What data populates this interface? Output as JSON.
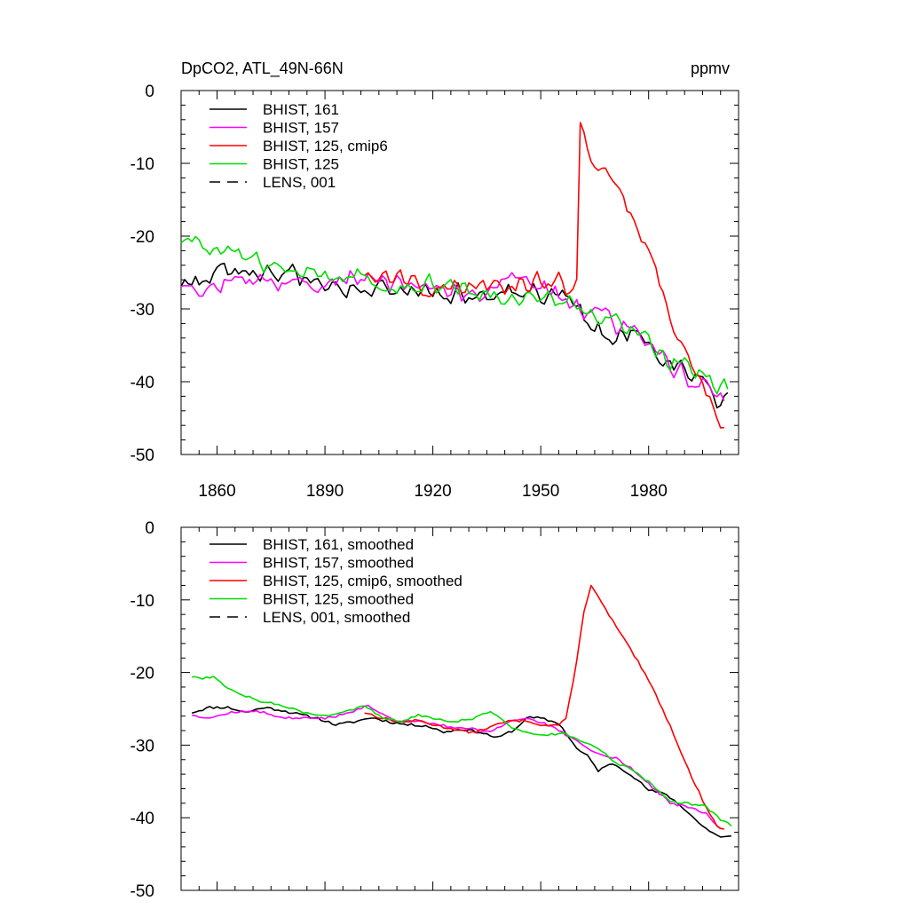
{
  "header": {
    "title": "DpCO2, ATL_49N-66N",
    "units": "ppmv"
  },
  "chart_data": [
    {
      "type": "line",
      "xlim": [
        1850,
        2005
      ],
      "ylim": [
        -50,
        0
      ],
      "xticks": [
        1860,
        1890,
        1920,
        1950,
        1980
      ],
      "yticks": [
        0,
        -10,
        -20,
        -30,
        -40,
        -50
      ],
      "show_x_tick_labels": true,
      "legend_position": "top-left",
      "grid": false,
      "series": [
        {
          "name": "BHIST, 161",
          "color": "#000000",
          "dash": "solid",
          "style": "noisy",
          "seed": 161,
          "points": [
            [
              1850,
              -26.5
            ],
            [
              1865,
              -25
            ],
            [
              1880,
              -25.5
            ],
            [
              1900,
              -27
            ],
            [
              1920,
              -27.5
            ],
            [
              1935,
              -28.5
            ],
            [
              1945,
              -27.5
            ],
            [
              1955,
              -28
            ],
            [
              1960,
              -30
            ],
            [
              1965,
              -33.5
            ],
            [
              1975,
              -33
            ],
            [
              1985,
              -37
            ],
            [
              1995,
              -40
            ],
            [
              2000,
              -43
            ],
            [
              2002,
              -42
            ]
          ]
        },
        {
          "name": "BHIST, 157",
          "color": "#ff00ff",
          "dash": "solid",
          "style": "noisy",
          "seed": 157,
          "points": [
            [
              1850,
              -26.5
            ],
            [
              1865,
              -26.5
            ],
            [
              1880,
              -25.8
            ],
            [
              1890,
              -26.5
            ],
            [
              1900,
              -25
            ],
            [
              1915,
              -27
            ],
            [
              1930,
              -28.5
            ],
            [
              1940,
              -26
            ],
            [
              1950,
              -27
            ],
            [
              1960,
              -29.5
            ],
            [
              1970,
              -32
            ],
            [
              1980,
              -35
            ],
            [
              1990,
              -39
            ],
            [
              1998,
              -41
            ],
            [
              2001,
              -42
            ]
          ]
        },
        {
          "name": "BHIST, 125, cmip6",
          "color": "#ff0000",
          "dash": "solid",
          "style": "noisy",
          "seed": 126,
          "points": [
            [
              1901,
              -25
            ],
            [
              1915,
              -26.5
            ],
            [
              1925,
              -27.5
            ],
            [
              1935,
              -27
            ],
            [
              1945,
              -26
            ],
            [
              1955,
              -26.5
            ],
            [
              1959,
              -27.5
            ],
            [
              1960,
              -26.5
            ],
            [
              1961,
              -5.2
            ],
            [
              1962,
              -5.5
            ],
            [
              1965,
              -9.5
            ],
            [
              1970,
              -13
            ],
            [
              1975,
              -17
            ],
            [
              1980,
              -22
            ],
            [
              1985,
              -29
            ],
            [
              1990,
              -36
            ],
            [
              1995,
              -41
            ],
            [
              1999,
              -44
            ],
            [
              2001,
              -46.5
            ]
          ]
        },
        {
          "name": "BHIST, 125",
          "color": "#00dd00",
          "dash": "solid",
          "style": "noisy",
          "seed": 125,
          "points": [
            [
              1850,
              -20.5
            ],
            [
              1855,
              -20
            ],
            [
              1860,
              -22
            ],
            [
              1870,
              -23.5
            ],
            [
              1880,
              -25
            ],
            [
              1890,
              -26
            ],
            [
              1900,
              -25
            ],
            [
              1915,
              -27
            ],
            [
              1925,
              -26.5
            ],
            [
              1935,
              -27.5
            ],
            [
              1945,
              -28
            ],
            [
              1955,
              -28.5
            ],
            [
              1965,
              -31
            ],
            [
              1975,
              -33
            ],
            [
              1985,
              -37
            ],
            [
              1995,
              -39
            ],
            [
              2002,
              -41.5
            ]
          ]
        }
      ]
    },
    {
      "type": "line",
      "xlim": [
        1850,
        2005
      ],
      "ylim": [
        -50,
        0
      ],
      "xticks": [
        1860,
        1890,
        1920,
        1950,
        1980
      ],
      "yticks": [
        0,
        -10,
        -20,
        -30,
        -40,
        -50
      ],
      "show_x_tick_labels": false,
      "legend_position": "top-left",
      "grid": false,
      "series": [
        {
          "name": "BHIST, 161, smoothed",
          "color": "#000000",
          "dash": "solid",
          "style": "smooth",
          "seed": 11,
          "points": [
            [
              1853,
              -25.5
            ],
            [
              1858,
              -24.8
            ],
            [
              1863,
              -24.8
            ],
            [
              1868,
              -25.5
            ],
            [
              1873,
              -24.8
            ],
            [
              1878,
              -25.2
            ],
            [
              1883,
              -25.8
            ],
            [
              1888,
              -26.3
            ],
            [
              1893,
              -27.2
            ],
            [
              1898,
              -26.8
            ],
            [
              1903,
              -26.2
            ],
            [
              1908,
              -26.8
            ],
            [
              1913,
              -27.2
            ],
            [
              1918,
              -27.3
            ],
            [
              1923,
              -28.2
            ],
            [
              1928,
              -27.8
            ],
            [
              1933,
              -28.2
            ],
            [
              1938,
              -29
            ],
            [
              1943,
              -27.8
            ],
            [
              1946,
              -26.2
            ],
            [
              1950,
              -26.3
            ],
            [
              1955,
              -27
            ],
            [
              1958,
              -29
            ],
            [
              1960,
              -30.5
            ],
            [
              1963,
              -31.5
            ],
            [
              1966,
              -33.5
            ],
            [
              1970,
              -32.5
            ],
            [
              1975,
              -34
            ],
            [
              1980,
              -36.2
            ],
            [
              1985,
              -36.8
            ],
            [
              1990,
              -38.8
            ],
            [
              1995,
              -41.2
            ],
            [
              2000,
              -42.7
            ],
            [
              2003,
              -42.6
            ]
          ]
        },
        {
          "name": "BHIST, 157, smoothed",
          "color": "#ff00ff",
          "dash": "solid",
          "style": "smooth",
          "seed": 12,
          "points": [
            [
              1853,
              -25.8
            ],
            [
              1858,
              -26.3
            ],
            [
              1863,
              -25.6
            ],
            [
              1868,
              -25.3
            ],
            [
              1873,
              -25.5
            ],
            [
              1878,
              -26.2
            ],
            [
              1883,
              -26.3
            ],
            [
              1888,
              -26.4
            ],
            [
              1893,
              -26
            ],
            [
              1898,
              -25.3
            ],
            [
              1902,
              -24.6
            ],
            [
              1906,
              -25.8
            ],
            [
              1911,
              -26.8
            ],
            [
              1916,
              -26.6
            ],
            [
              1921,
              -27.1
            ],
            [
              1926,
              -27.6
            ],
            [
              1931,
              -27.8
            ],
            [
              1936,
              -28.3
            ],
            [
              1941,
              -26.8
            ],
            [
              1946,
              -26.2
            ],
            [
              1951,
              -27
            ],
            [
              1956,
              -28.3
            ],
            [
              1961,
              -29.8
            ],
            [
              1966,
              -31.3
            ],
            [
              1971,
              -31.8
            ],
            [
              1976,
              -33.5
            ],
            [
              1981,
              -35.8
            ],
            [
              1986,
              -38
            ],
            [
              1991,
              -38.5
            ],
            [
              1996,
              -39.5
            ],
            [
              2000,
              -41.5
            ]
          ]
        },
        {
          "name": "BHIST, 125, cmip6, smoothed",
          "color": "#ff0000",
          "dash": "solid",
          "style": "smooth",
          "seed": 13,
          "points": [
            [
              1901,
              -25.5
            ],
            [
              1906,
              -26.3
            ],
            [
              1911,
              -26.8
            ],
            [
              1916,
              -26.6
            ],
            [
              1921,
              -27.3
            ],
            [
              1926,
              -27.8
            ],
            [
              1931,
              -28.3
            ],
            [
              1936,
              -27.5
            ],
            [
              1941,
              -26.7
            ],
            [
              1946,
              -26.6
            ],
            [
              1951,
              -27.3
            ],
            [
              1955,
              -27.2
            ],
            [
              1957,
              -26.5
            ],
            [
              1960,
              -18.5
            ],
            [
              1962,
              -11.5
            ],
            [
              1964,
              -8
            ],
            [
              1967,
              -10.5
            ],
            [
              1972,
              -14.5
            ],
            [
              1977,
              -18.5
            ],
            [
              1982,
              -23
            ],
            [
              1987,
              -28.5
            ],
            [
              1992,
              -34.5
            ],
            [
              1996,
              -38.5
            ],
            [
              1999,
              -41.2
            ],
            [
              2001,
              -41.5
            ]
          ]
        },
        {
          "name": "BHIST, 125, smoothed",
          "color": "#00dd00",
          "dash": "solid",
          "style": "smooth",
          "seed": 14,
          "points": [
            [
              1853,
              -20.5
            ],
            [
              1856,
              -20.8
            ],
            [
              1859,
              -20.5
            ],
            [
              1862,
              -21.8
            ],
            [
              1866,
              -22.8
            ],
            [
              1871,
              -23.8
            ],
            [
              1876,
              -24.3
            ],
            [
              1881,
              -25
            ],
            [
              1886,
              -25.8
            ],
            [
              1891,
              -26
            ],
            [
              1896,
              -25.3
            ],
            [
              1901,
              -24.6
            ],
            [
              1906,
              -26.2
            ],
            [
              1911,
              -26.8
            ],
            [
              1916,
              -25.8
            ],
            [
              1921,
              -26.3
            ],
            [
              1926,
              -26.8
            ],
            [
              1931,
              -26.3
            ],
            [
              1936,
              -25.3
            ],
            [
              1941,
              -27.3
            ],
            [
              1946,
              -28.3
            ],
            [
              1951,
              -28.6
            ],
            [
              1956,
              -28.3
            ],
            [
              1961,
              -29.3
            ],
            [
              1966,
              -30.5
            ],
            [
              1971,
              -32.5
            ],
            [
              1976,
              -33.5
            ],
            [
              1981,
              -35.5
            ],
            [
              1986,
              -37.8
            ],
            [
              1991,
              -38
            ],
            [
              1996,
              -38.5
            ],
            [
              2000,
              -40.2
            ],
            [
              2003,
              -41
            ]
          ]
        }
      ]
    }
  ],
  "legends": [
    {
      "entries": [
        {
          "label": "BHIST, 161",
          "color": "#000000",
          "dash": "solid"
        },
        {
          "label": "BHIST, 157",
          "color": "#ff00ff",
          "dash": "solid"
        },
        {
          "label": "BHIST, 125, cmip6",
          "color": "#ff0000",
          "dash": "solid"
        },
        {
          "label": "BHIST, 125",
          "color": "#00dd00",
          "dash": "solid"
        },
        {
          "label": "LENS, 001",
          "color": "#000000",
          "dash": "dashed"
        }
      ]
    },
    {
      "entries": [
        {
          "label": "BHIST, 161, smoothed",
          "color": "#000000",
          "dash": "solid"
        },
        {
          "label": "BHIST, 157, smoothed",
          "color": "#ff00ff",
          "dash": "solid"
        },
        {
          "label": "BHIST, 125, cmip6, smoothed",
          "color": "#ff0000",
          "dash": "solid"
        },
        {
          "label": "BHIST, 125, smoothed",
          "color": "#00dd00",
          "dash": "solid"
        },
        {
          "label": "LENS, 001, smoothed",
          "color": "#000000",
          "dash": "dashed"
        }
      ]
    }
  ]
}
